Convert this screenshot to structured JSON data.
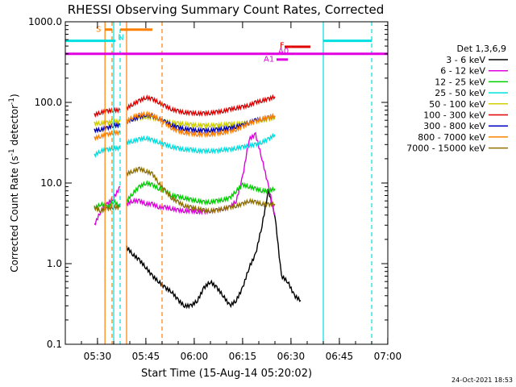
{
  "title": "RHESSI Observing Summary Count Rates, Corrected",
  "xlabel": "Start Time (15-Aug-14 05:20:02)",
  "ylabel_main": "Corrected Count Rate (s",
  "ylabel_sup": "-1",
  "ylabel_mid": " detector",
  "ylabel_sup2": "-1",
  "ylabel_end": ")",
  "timestamp": "24-Oct-2021 18:53",
  "legend_title": "Det 1,3,6,9",
  "x_tick_labels": [
    "05:30",
    "05:45",
    "06:00",
    "06:15",
    "06:30",
    "06:45",
    "07:00"
  ],
  "y_tick_labels": [
    "0.1",
    "1.0",
    "10.0",
    "100.0",
    "1000.0"
  ],
  "flag_labels": {
    "S": "S",
    "N": "N",
    "F": "F",
    "A0": "A0",
    "A1": "A1"
  },
  "chart_data": {
    "type": "line",
    "title": "RHESSI Observing Summary Count Rates, Corrected",
    "xlabel": "Start Time (15-Aug-14 05:20:02)",
    "ylabel": "Corrected Count Rate (s-1 detector-1)",
    "x_unit": "minutes since 05:20:02",
    "xlim": [
      0,
      100
    ],
    "ylim": [
      0.1,
      1000
    ],
    "yscale": "log",
    "legend_position": "right",
    "x": [
      9,
      11,
      13,
      15,
      17,
      19,
      21,
      23,
      25,
      27,
      29,
      31,
      33,
      35,
      37,
      39,
      41,
      43,
      45,
      47,
      49,
      51,
      53,
      55,
      57,
      59,
      61,
      63,
      65,
      67,
      69,
      71,
      73,
      75,
      77,
      79,
      81,
      83,
      85
    ],
    "segments": [
      [
        0,
        4
      ],
      [
        5,
        38
      ]
    ],
    "series": [
      {
        "name": "3 - 6 keV",
        "color": "#000000",
        "values": [
          null,
          null,
          null,
          null,
          null,
          1.6,
          1.3,
          1.1,
          0.9,
          0.7,
          0.6,
          0.5,
          0.45,
          0.35,
          0.3,
          0.3,
          0.35,
          0.5,
          0.6,
          0.5,
          0.4,
          0.3,
          0.35,
          0.5,
          0.9,
          1.3,
          3.0,
          8.0,
          4.0,
          0.7,
          0.6,
          0.4,
          0.35,
          null,
          null,
          null,
          null,
          null,
          null
        ]
      },
      {
        "name": "6 - 12 keV",
        "color": "#e000e0",
        "values": [
          3.0,
          4.5,
          5.5,
          6.5,
          9.0,
          5.5,
          6.0,
          6.0,
          5.5,
          5.5,
          5.0,
          5.0,
          4.8,
          4.6,
          4.5,
          4.5,
          4.4,
          4.4,
          4.5,
          4.6,
          4.8,
          5.0,
          6.0,
          12,
          35,
          40,
          20,
          9.0,
          4.0,
          null,
          null,
          null,
          null,
          null,
          null,
          null,
          null,
          null,
          null
        ]
      },
      {
        "name": "12 - 25 keV",
        "color": "#00d000",
        "values": [
          4.8,
          5.5,
          5.0,
          6.0,
          5.0,
          6.0,
          7.5,
          9.0,
          10.0,
          9.5,
          8.5,
          8.0,
          7.0,
          6.8,
          6.5,
          6.2,
          6.0,
          5.8,
          5.8,
          6.0,
          6.2,
          6.5,
          8.0,
          9.5,
          9.0,
          8.5,
          8.0,
          8.0,
          8.5,
          null,
          null,
          null,
          null,
          null,
          null,
          null,
          null,
          null,
          null
        ]
      },
      {
        "name": "25 - 50 keV",
        "color": "#00e0e0",
        "values": [
          22,
          25,
          26,
          27,
          27,
          32,
          33,
          35,
          36,
          34,
          32,
          30,
          28,
          27,
          26,
          26,
          25,
          25,
          25,
          25,
          26,
          26,
          27,
          28,
          29,
          30,
          32,
          35,
          40,
          null,
          null,
          null,
          null,
          null,
          null,
          null,
          null,
          null,
          null
        ]
      },
      {
        "name": "50 - 100 keV",
        "color": "#d0d000",
        "values": [
          55,
          55,
          56,
          58,
          58,
          60,
          62,
          64,
          66,
          64,
          62,
          58,
          56,
          55,
          54,
          53,
          52,
          52,
          52,
          52,
          53,
          54,
          54,
          55,
          56,
          58,
          60,
          62,
          65,
          null,
          null,
          null,
          null,
          null,
          null,
          null,
          null,
          null,
          null
        ]
      },
      {
        "name": "100 - 300 keV",
        "color": "#e00000",
        "values": [
          70,
          75,
          78,
          80,
          80,
          85,
          95,
          105,
          115,
          110,
          100,
          90,
          82,
          78,
          75,
          74,
          73,
          73,
          74,
          76,
          78,
          82,
          85,
          88,
          92,
          100,
          105,
          110,
          118,
          null,
          null,
          null,
          null,
          null,
          null,
          null,
          null,
          null,
          null
        ]
      },
      {
        "name": "300 - 800 keV",
        "color": "#0000c0",
        "values": [
          45,
          46,
          48,
          52,
          52,
          58,
          62,
          66,
          70,
          68,
          63,
          57,
          52,
          49,
          47,
          46,
          45,
          45,
          45,
          46,
          47,
          48,
          50,
          52,
          56,
          60,
          62,
          65,
          68,
          null,
          null,
          null,
          null,
          null,
          null,
          null,
          null,
          null,
          null
        ]
      },
      {
        "name": "800 - 7000 keV",
        "color": "#ff8000",
        "values": [
          36,
          38,
          40,
          42,
          42,
          58,
          66,
          70,
          72,
          70,
          62,
          55,
          48,
          44,
          42,
          41,
          40,
          40,
          40,
          41,
          42,
          44,
          46,
          50,
          55,
          58,
          62,
          65,
          68,
          null,
          null,
          null,
          null,
          null,
          null,
          null,
          null,
          null,
          null
        ]
      },
      {
        "name": "7000 - 15000 keV",
        "color": "#907000",
        "values": [
          5.0,
          4.5,
          4.8,
          5.0,
          5.0,
          13,
          14,
          15,
          14,
          13,
          10,
          8.0,
          6.5,
          5.8,
          5.2,
          5.0,
          4.8,
          4.6,
          4.5,
          4.6,
          4.8,
          5.0,
          5.2,
          5.5,
          6.0,
          5.8,
          5.5,
          5.4,
          5.5,
          null,
          null,
          null,
          null,
          null,
          null,
          null,
          null,
          null,
          null
        ]
      }
    ],
    "attenuator_periods": [
      {
        "label": "S",
        "x": [
          12.3,
          14.5
        ],
        "y": 800,
        "color": "#ff8000"
      },
      {
        "label": "N",
        "x": [
          17,
          27
        ],
        "y": 800,
        "color": "#ff8000"
      },
      {
        "label": "F",
        "x": [
          68,
          76
        ],
        "y": 490,
        "color": "#e00000"
      },
      {
        "label": "A0",
        "x": [
          0,
          100
        ],
        "y": 400,
        "color": "#e000e0"
      },
      {
        "label": "A1",
        "x": [
          65.5,
          69
        ],
        "y": 340,
        "color": "#e000e0"
      }
    ],
    "eclipse_periods": [
      {
        "x": [
          0,
          15.5
        ],
        "y": 580
      },
      {
        "x": [
          80,
          95
        ],
        "y": 580
      }
    ],
    "eclipse_color": "#00e0e0"
  }
}
